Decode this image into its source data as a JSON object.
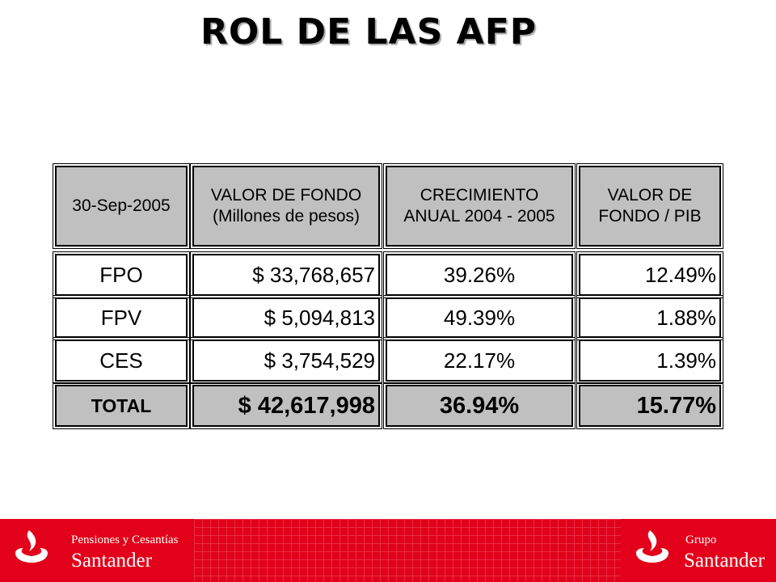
{
  "title": "ROL DE LAS AFP",
  "table": {
    "headers": [
      {
        "lines": [
          "30-Sep-2005"
        ]
      },
      {
        "lines": [
          "VALOR DE FONDO",
          "(Millones de pesos)"
        ]
      },
      {
        "lines": [
          "CRECIMIENTO",
          "ANUAL 2004 - 2005"
        ]
      },
      {
        "lines": [
          "VALOR DE",
          "FONDO / PIB"
        ]
      }
    ],
    "rows": [
      [
        "FPO",
        "$ 33,768,657",
        "39.26%",
        "12.49%"
      ],
      [
        "FPV",
        "$ 5,094,813",
        "49.39%",
        "1.88%"
      ],
      [
        "CES",
        "$ 3,754,529",
        "22.17%",
        "1.39%"
      ]
    ],
    "total": [
      "TOTAL",
      "$ 42,617,998",
      "36.94%",
      "15.77%"
    ]
  },
  "footer": {
    "left_line1": "Pensiones y Cesantías",
    "left_line2": "Santander",
    "right_line1": "Grupo",
    "right_line2": "Santander",
    "color": "#e2001a"
  }
}
